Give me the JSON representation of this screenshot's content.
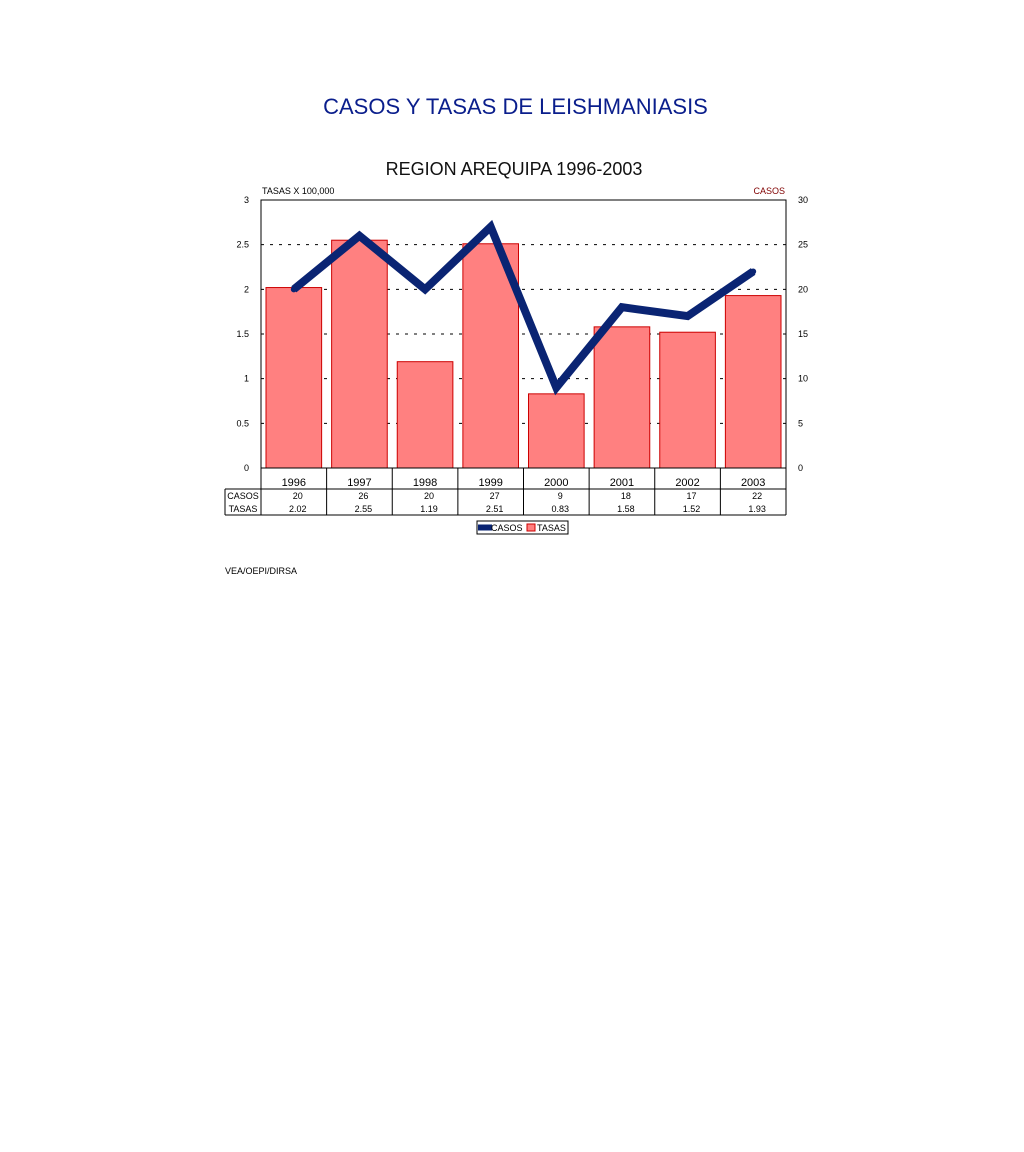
{
  "page": {
    "title": "CASOS Y TASAS DE LEISHMANIASIS",
    "source": "VEA/OEPI/DIRSA"
  },
  "colors": {
    "title": "#0a1e8c",
    "bar_fill": "#ff8080",
    "bar_stroke": "#cc0000",
    "line": "#0a2473",
    "axis_label_right": "#800000"
  },
  "chart_data": {
    "type": "bar+line",
    "title": "REGION AREQUIPA 1996-2003",
    "categories": [
      "1996",
      "1997",
      "1998",
      "1999",
      "2000",
      "2001",
      "2002",
      "2003"
    ],
    "series": [
      {
        "name": "TASAS",
        "type": "bar",
        "axis": "left",
        "values": [
          2.02,
          2.55,
          1.19,
          2.51,
          0.83,
          1.58,
          1.52,
          1.93
        ],
        "labels": [
          "2.02",
          "2.55",
          "1.19",
          "2.51",
          "0.83",
          "1.58",
          "1.52",
          "1.93"
        ]
      },
      {
        "name": "CASOS",
        "type": "line",
        "axis": "right",
        "values": [
          20,
          26,
          20,
          27,
          9,
          18,
          17,
          22
        ],
        "labels": [
          "20",
          "26",
          "20",
          "27",
          "9",
          "18",
          "17",
          "22"
        ]
      }
    ],
    "y_left": {
      "label": "TASAS X 100,000",
      "ylim": [
        0,
        3
      ],
      "ticks": [
        "0",
        "0.5",
        "1",
        "1.5",
        "2",
        "2.5",
        "3"
      ]
    },
    "y_right": {
      "label": "CASOS",
      "ylim": [
        0,
        30
      ],
      "ticks": [
        "0",
        "5",
        "10",
        "15",
        "20",
        "25",
        "30"
      ]
    },
    "grid": "dashed horizontal",
    "data_table": true,
    "legend": {
      "position": "bottom",
      "entries": [
        "CASOS",
        "TASAS"
      ]
    }
  }
}
